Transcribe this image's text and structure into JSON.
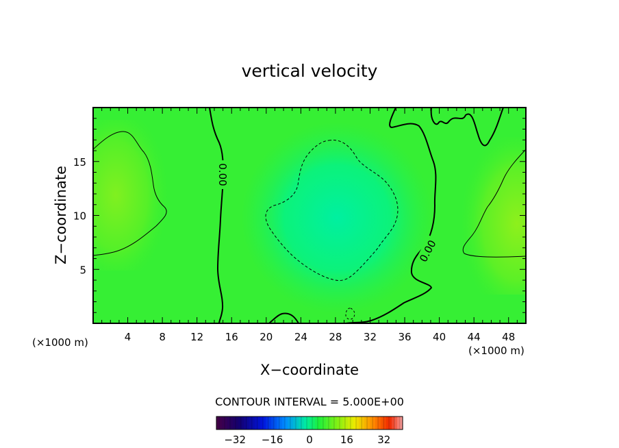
{
  "chart_data": {
    "type": "heatmap",
    "title": "vertical velocity",
    "xlabel": "X−coordinate",
    "ylabel": "Z−coordinate",
    "x_unit_left": "(×1000 m)",
    "x_unit_right": "(×1000 m)",
    "xlim": [
      0,
      50
    ],
    "ylim": [
      0,
      20
    ],
    "x_ticks": [
      4,
      8,
      12,
      16,
      20,
      24,
      28,
      32,
      36,
      40,
      44,
      48
    ],
    "y_ticks": [
      5,
      10,
      15
    ],
    "x_tick_labels": [
      "4",
      "8",
      "12",
      "16",
      "20",
      "24",
      "28",
      "32",
      "36",
      "40",
      "44",
      "48"
    ],
    "y_tick_labels": [
      "5",
      "10",
      "15"
    ],
    "grid": false,
    "contour_interval_text": "CONTOUR INTERVAL = 5.000E+00",
    "contour_labels": [
      "0.00",
      "0.00"
    ],
    "field_samples": {
      "x": [
        0,
        10,
        20,
        30,
        40,
        50
      ],
      "z": [
        0,
        5,
        10,
        15,
        20
      ],
      "values": [
        [
          0,
          0,
          -2,
          -3,
          1,
          1
        ],
        [
          3,
          1,
          -2,
          -5,
          1,
          4
        ],
        [
          5,
          1,
          -3,
          -6,
          0,
          6
        ],
        [
          4,
          1,
          -3,
          -5,
          0,
          4
        ],
        [
          2,
          0,
          -1,
          -2,
          0,
          1
        ]
      ]
    },
    "colorbar": {
      "min": -40,
      "max": 40,
      "tick_values": [
        -32,
        -16,
        0,
        16,
        32
      ],
      "tick_labels": [
        "−32",
        "−16",
        "0",
        "16",
        "32"
      ]
    }
  }
}
